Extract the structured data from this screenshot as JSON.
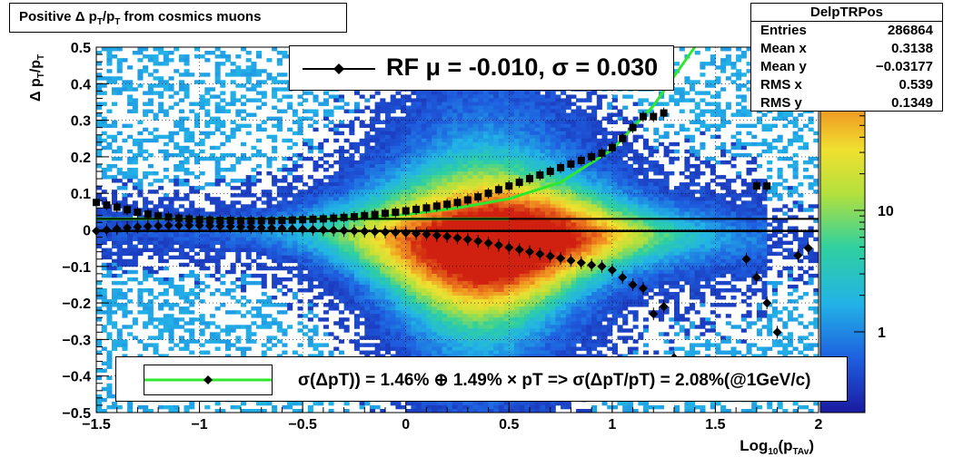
{
  "title": "Positive Δ p_T/p_T from cosmics muons",
  "stats": {
    "name": "DelpTRPos",
    "rows": [
      {
        "key": "Entries",
        "value": "286864"
      },
      {
        "key": "Mean x",
        "value": "0.3138"
      },
      {
        "key": "Mean y",
        "value": "−0.03177"
      },
      {
        "key": "RMS x",
        "value": "0.539"
      },
      {
        "key": "RMS y",
        "value": "0.1349"
      }
    ]
  },
  "legend_top": {
    "text": "RF μ = -0.010, σ =   0.030"
  },
  "legend_bottom": {
    "text": "σ(ΔpT)) =  1.46% ⊕  1.49% × pT => σ(ΔpT/pT) =  2.08%(@1GeV/c)"
  },
  "colors": {
    "fit": "#2ee82e",
    "marker": "#000000"
  },
  "chart_data": {
    "type": "heatmap",
    "xlabel": "Log10(pTAv)",
    "ylabel": "Δ pT/pT",
    "xlim": [
      -1.5,
      2
    ],
    "ylim": [
      -0.5,
      0.5
    ],
    "x_ticks": [
      "−1.5",
      "−1",
      "−0.5",
      "0",
      "0.5",
      "1",
      "1.5",
      "2"
    ],
    "y_ticks": [
      "−0.5",
      "−0.4",
      "−0.3",
      "−0.2",
      "−0.1",
      "0",
      "0.1",
      "0.2",
      "0.3",
      "0.4",
      "0.5"
    ],
    "z_scale": "log",
    "z_ticks": [
      "1",
      "10"
    ],
    "grid": true,
    "series": [
      {
        "style": "square-markers",
        "x": [
          -1.5,
          -1.45,
          -1.4,
          -1.35,
          -1.3,
          -1.25,
          -1.2,
          -1.15,
          -1.1,
          -1.05,
          -1.0,
          -0.95,
          -0.9,
          -0.85,
          -0.8,
          -0.75,
          -0.7,
          -0.65,
          -0.6,
          -0.55,
          -0.5,
          -0.45,
          -0.4,
          -0.35,
          -0.3,
          -0.25,
          -0.2,
          -0.15,
          -0.1,
          -0.05,
          0.0,
          0.05,
          0.1,
          0.15,
          0.2,
          0.25,
          0.3,
          0.35,
          0.4,
          0.45,
          0.5,
          0.55,
          0.6,
          0.65,
          0.7,
          0.75,
          0.8,
          0.85,
          0.9,
          0.95,
          1.0,
          1.05,
          1.1,
          1.15,
          1.2,
          1.25,
          1.7,
          1.75
        ],
        "y": [
          0.075,
          0.068,
          0.062,
          0.055,
          0.048,
          0.043,
          0.038,
          0.035,
          0.032,
          0.03,
          0.028,
          0.027,
          0.026,
          0.026,
          0.025,
          0.025,
          0.025,
          0.025,
          0.026,
          0.027,
          0.028,
          0.029,
          0.03,
          0.032,
          0.034,
          0.036,
          0.039,
          0.042,
          0.045,
          0.048,
          0.052,
          0.056,
          0.06,
          0.065,
          0.07,
          0.075,
          0.082,
          0.09,
          0.1,
          0.11,
          0.12,
          0.13,
          0.14,
          0.15,
          0.16,
          0.17,
          0.18,
          0.19,
          0.2,
          0.21,
          0.225,
          0.25,
          0.28,
          0.31,
          0.31,
          0.32,
          0.12,
          0.12
        ]
      },
      {
        "style": "diamond-markers",
        "x": [
          -1.5,
          -1.45,
          -1.4,
          -1.35,
          -1.3,
          -1.25,
          -1.2,
          -1.15,
          -1.1,
          -1.05,
          -1.0,
          -0.95,
          -0.9,
          -0.85,
          -0.8,
          -0.75,
          -0.7,
          -0.65,
          -0.6,
          -0.55,
          -0.5,
          -0.45,
          -0.4,
          -0.35,
          -0.3,
          -0.25,
          -0.2,
          -0.15,
          -0.1,
          -0.05,
          0.0,
          0.05,
          0.1,
          0.15,
          0.2,
          0.25,
          0.3,
          0.35,
          0.4,
          0.45,
          0.5,
          0.55,
          0.6,
          0.65,
          0.7,
          0.75,
          0.8,
          0.85,
          0.9,
          0.95,
          1.0,
          1.05,
          1.1,
          1.15,
          1.2,
          1.25,
          1.3,
          1.65,
          1.7,
          1.75,
          1.8,
          1.9,
          1.95
        ],
        "y": [
          -0.003,
          0.0,
          0.003,
          0.006,
          0.008,
          0.01,
          0.011,
          0.012,
          0.012,
          0.012,
          0.012,
          0.011,
          0.01,
          0.009,
          0.008,
          0.007,
          0.006,
          0.005,
          0.004,
          0.003,
          0.002,
          0.001,
          0.0,
          -0.001,
          -0.002,
          -0.003,
          -0.004,
          -0.005,
          -0.006,
          -0.007,
          -0.008,
          -0.01,
          -0.012,
          -0.015,
          -0.018,
          -0.022,
          -0.026,
          -0.031,
          -0.036,
          -0.042,
          -0.048,
          -0.054,
          -0.06,
          -0.066,
          -0.072,
          -0.078,
          -0.084,
          -0.09,
          -0.096,
          -0.1,
          -0.11,
          -0.13,
          -0.15,
          -0.16,
          -0.23,
          -0.21,
          -0.35,
          -0.08,
          -0.13,
          -0.2,
          -0.28,
          -0.07,
          -0.05
        ]
      },
      {
        "style": "fit-curve",
        "x": [
          -1.5,
          -1.25,
          -1.0,
          -0.75,
          -0.5,
          -0.25,
          0.0,
          0.25,
          0.5,
          0.75,
          1.0,
          1.1,
          1.2,
          1.3,
          1.4
        ],
        "y": [
          0.03,
          0.03,
          0.03,
          0.03,
          0.031,
          0.034,
          0.042,
          0.06,
          0.085,
          0.13,
          0.22,
          0.28,
          0.34,
          0.42,
          0.5
        ]
      },
      {
        "style": "fit-line-upper",
        "x": [
          -1.5,
          2
        ],
        "y": [
          0.03,
          0.03
        ]
      },
      {
        "style": "fit-line-lower",
        "x": [
          -1.5,
          2
        ],
        "y": [
          -0.003,
          -0.003
        ]
      }
    ]
  }
}
